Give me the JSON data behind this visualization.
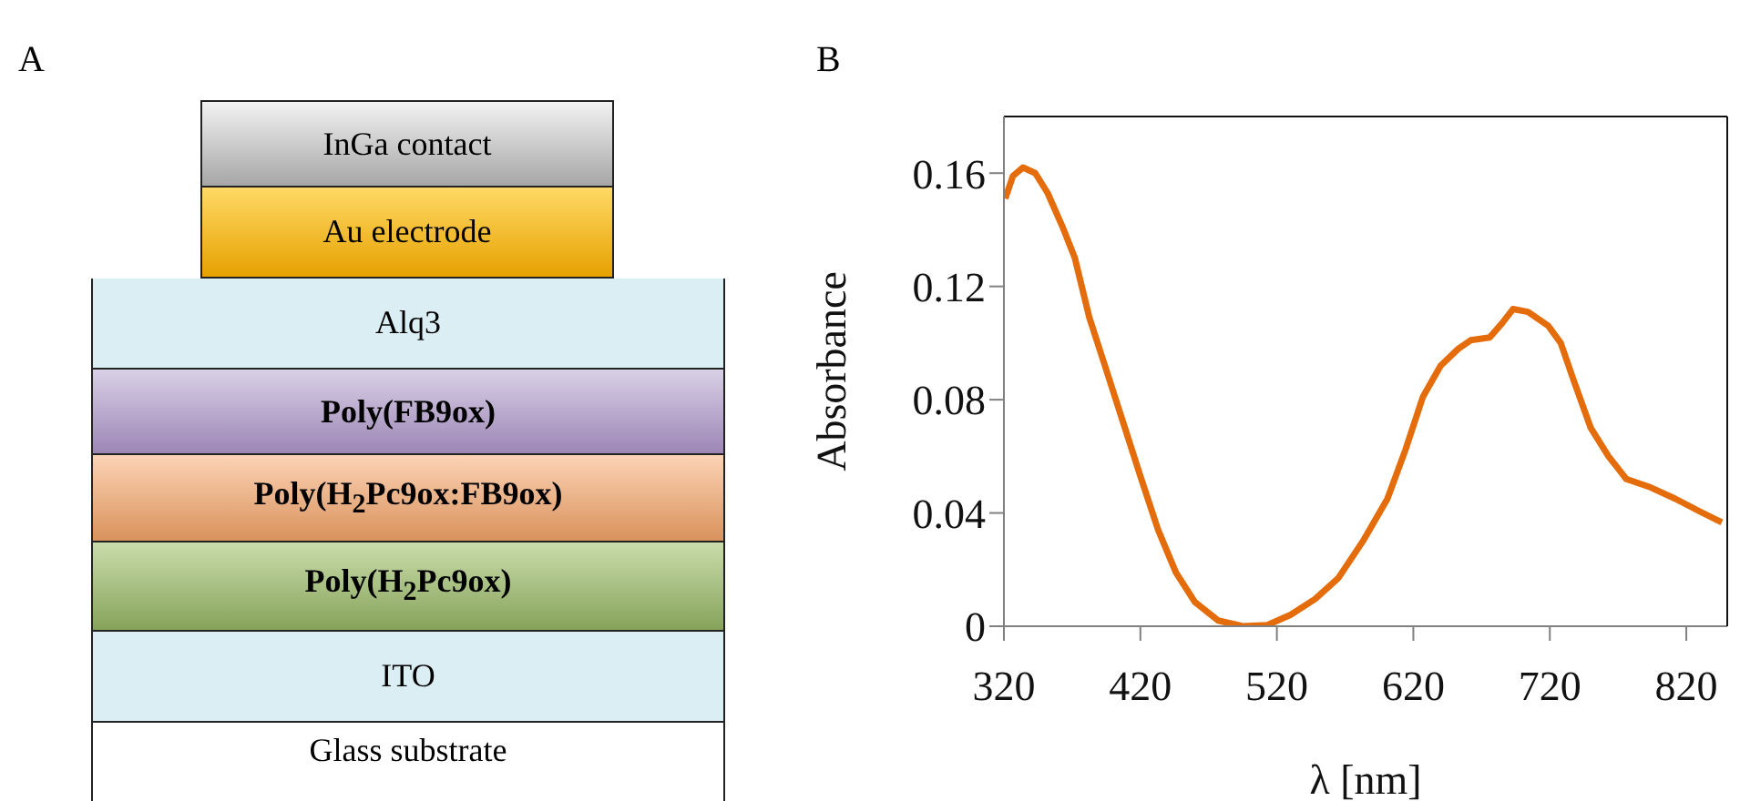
{
  "chart_data": [
    {
      "type": "other",
      "title": "A",
      "annotations": [
        "InGa contact",
        "Au electrode",
        "Alq3",
        "Poly(FB9ox)",
        "Poly(H$_{2}$Pc9ox:FB9ox)",
        "Poly(H$_{2}$Pc9ox)",
        "ITO",
        "Glass substrate"
      ]
    },
    {
      "type": "line",
      "title": "B",
      "xlabel": "λ [nm]",
      "ylabel": "Absorbance",
      "xlim": [
        320,
        850
      ],
      "xticks": [
        320,
        420,
        520,
        620,
        720,
        820
      ],
      "ylim": [
        0,
        0.18
      ],
      "yticks": [
        {
          "value": 0,
          "label": "0"
        },
        0.04,
        0.08,
        0.12,
        0.16
      ],
      "marker": "none",
      "line_style": "solid",
      "series": [
        {
          "color": "#e46c0a",
          "x": [
            321,
            326.6,
            334,
            343,
            352,
            363,
            372,
            382.6,
            394,
            407,
            420,
            433,
            446,
            460,
            477,
            495,
            513,
            530,
            548,
            565,
            583,
            601,
            614,
            627,
            640,
            653,
            662,
            676,
            685,
            693,
            704,
            719,
            728,
            737,
            750,
            763,
            776,
            794,
            812,
            830,
            846
          ],
          "values": [
            0.151,
            0.159,
            0.162,
            0.16,
            0.153,
            0.141,
            0.13,
            0.109,
            0.092,
            0.0725,
            0.053,
            0.034,
            0.019,
            0.0085,
            0.002,
            0,
            0.0004,
            0.004,
            0.0096,
            0.017,
            0.03,
            0.045,
            0.062,
            0.081,
            0.092,
            0.098,
            0.101,
            0.102,
            0.107,
            0.112,
            0.111,
            0.106,
            0.1,
            0.0875,
            0.07,
            0.06,
            0.052,
            0.049,
            0.045,
            0.0405,
            0.0367
          ]
        }
      ]
    }
  ]
}
